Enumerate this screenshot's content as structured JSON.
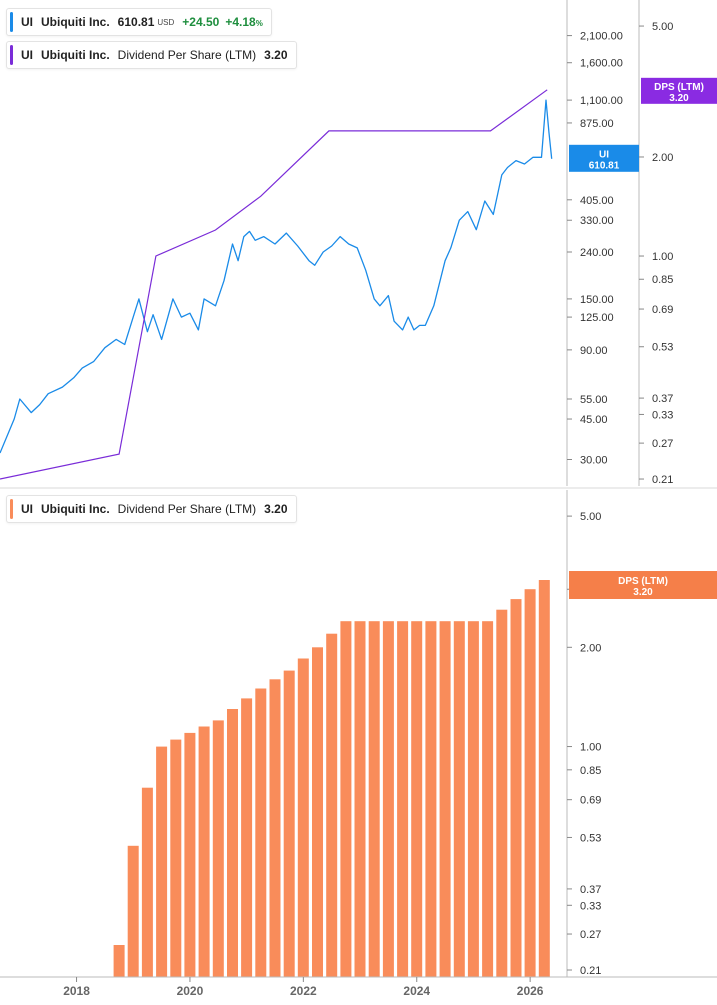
{
  "colors": {
    "price": "#1a8be8",
    "dps_line": "#7a2cd8",
    "dps_tag": "#8a2be2",
    "bars": "#f98c5a",
    "bars_tag": "#f57f49",
    "gain": "#1e8e3e",
    "axis_text": "#333333"
  },
  "legends": {
    "price": {
      "ticker": "UI",
      "name": "Ubiquiti Inc.",
      "price": "610.81",
      "currency": "USD",
      "change": "+24.50",
      "change_pct": "+4.18",
      "pct_sign": "%"
    },
    "dps_top": {
      "ticker": "UI",
      "name": "Ubiquiti Inc.",
      "metric": "Dividend Per Share (LTM)",
      "value": "3.20"
    },
    "dps_bottom": {
      "ticker": "UI",
      "name": "Ubiquiti Inc.",
      "metric": "Dividend Per Share (LTM)",
      "value": "3.20"
    }
  },
  "tags": {
    "price": {
      "line1": "UI",
      "line2": "610.81"
    },
    "dps_top": {
      "line1": "DPS (LTM)",
      "line2": "3.20"
    },
    "dps_bottom": {
      "line1": "DPS (LTM)",
      "line2": "3.20"
    }
  },
  "chart_data": [
    {
      "type": "line",
      "series": [
        {
          "name": "Ubiquiti Inc.",
          "x": [
            2016.65,
            2016.9,
            2017.0,
            2017.2,
            2017.35,
            2017.5,
            2017.75,
            2017.95,
            2018.1,
            2018.3,
            2018.5,
            2018.7,
            2018.85,
            2019.0,
            2019.1,
            2019.25,
            2019.35,
            2019.5,
            2019.7,
            2019.85,
            2020.0,
            2020.15,
            2020.25,
            2020.45,
            2020.6,
            2020.75,
            2020.85,
            2020.95,
            2021.05,
            2021.15,
            2021.3,
            2021.5,
            2021.7,
            2021.9,
            2022.1,
            2022.2,
            2022.35,
            2022.5,
            2022.65,
            2022.8,
            2022.95,
            2023.1,
            2023.25,
            2023.35,
            2023.5,
            2023.6,
            2023.75,
            2023.85,
            2023.95,
            2024.05,
            2024.15,
            2024.3,
            2024.5,
            2024.6,
            2024.75,
            2024.9,
            2025.05,
            2025.2,
            2025.35,
            2025.5,
            2025.6,
            2025.75,
            2025.9,
            2026.05,
            2026.2,
            2026.28,
            2026.33,
            2026.38
          ],
          "values": [
            32,
            45,
            55,
            48,
            52,
            58,
            62,
            68,
            75,
            80,
            92,
            100,
            95,
            125,
            150,
            108,
            128,
            100,
            150,
            125,
            130,
            110,
            150,
            140,
            180,
            260,
            220,
            280,
            295,
            270,
            280,
            260,
            290,
            255,
            220,
            210,
            240,
            255,
            280,
            260,
            250,
            200,
            150,
            140,
            155,
            120,
            110,
            125,
            110,
            115,
            115,
            140,
            220,
            250,
            330,
            360,
            300,
            400,
            350,
            520,
            560,
            600,
            580,
            620,
            620,
            1100,
            800,
            610.81
          ]
        },
        {
          "name": "Dividend Per Share (LTM)",
          "x": [
            2016.65,
            2018.75,
            2019.4,
            2020.45,
            2021.25,
            2022.45,
            2025.3,
            2026.3
          ],
          "values": [
            0.21,
            0.25,
            1.0,
            1.2,
            1.52,
            2.4,
            2.4,
            3.2
          ]
        }
      ],
      "y_left_ticks": [
        "2,100.00",
        "1,600.00",
        "1,100.00",
        "875.00",
        "610.81",
        "405.00",
        "330.00",
        "240.00",
        "150.00",
        "125.00",
        "90.00",
        "55.00",
        "45.00",
        "30.00"
      ],
      "y_right_ticks": [
        "5.00",
        "2.00",
        "1.00",
        "0.85",
        "0.69",
        "0.53",
        "0.37",
        "0.33",
        "0.27",
        "0.21"
      ],
      "ylim_price": [
        23,
        3000
      ],
      "ylim_dps": [
        0.2,
        6.0
      ],
      "xlim": [
        2016.65,
        2026.65
      ],
      "y_scale": "log",
      "grid": false
    },
    {
      "type": "bar",
      "series": [
        {
          "name": "Dividend Per Share (LTM)",
          "x": [
            2018.75,
            2019.0,
            2019.25,
            2019.5,
            2019.75,
            2020.0,
            2020.25,
            2020.5,
            2020.75,
            2021.0,
            2021.25,
            2021.5,
            2021.75,
            2022.0,
            2022.25,
            2022.5,
            2022.75,
            2023.0,
            2023.25,
            2023.5,
            2023.75,
            2024.0,
            2024.25,
            2024.5,
            2024.75,
            2025.0,
            2025.25,
            2025.5,
            2025.75,
            2026.0,
            2026.25
          ],
          "values": [
            0.25,
            0.5,
            0.75,
            1.0,
            1.05,
            1.1,
            1.15,
            1.2,
            1.3,
            1.4,
            1.5,
            1.6,
            1.7,
            1.85,
            2.0,
            2.2,
            2.4,
            2.4,
            2.4,
            2.4,
            2.4,
            2.4,
            2.4,
            2.4,
            2.4,
            2.4,
            2.4,
            2.6,
            2.8,
            3.0,
            3.2
          ]
        }
      ],
      "categories": [
        "2018",
        "2020",
        "2022",
        "2024",
        "2026"
      ],
      "y_ticks": [
        "5.00",
        "3.00",
        "2.00",
        "1.00",
        "0.85",
        "0.69",
        "0.53",
        "0.37",
        "0.33",
        "0.27",
        "0.21"
      ],
      "ylim": [
        0.2,
        6.0
      ],
      "y_scale": "log",
      "grid": false
    }
  ]
}
